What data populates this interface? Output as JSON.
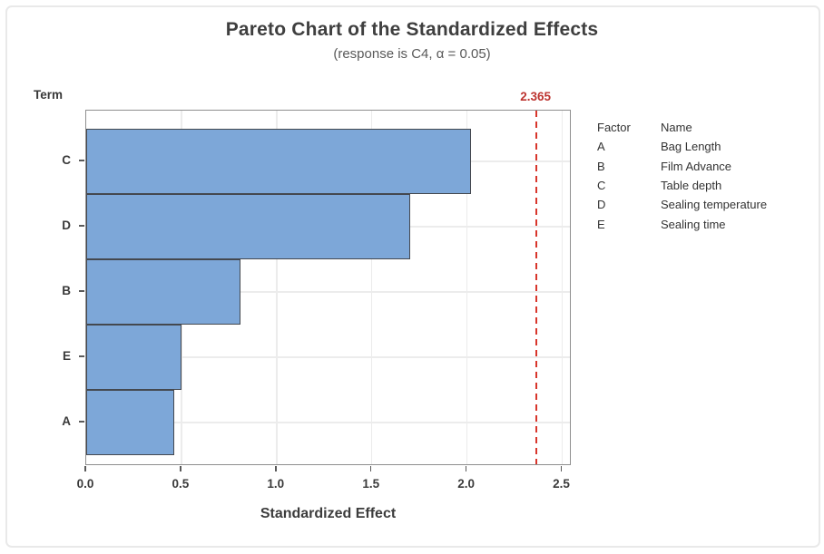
{
  "figure": {
    "title": "Pareto Chart of the Standardized Effects",
    "subtitle": "(response is C4, α = 0.05)",
    "y_axis_label": "Term",
    "x_axis_label": "Standardized Effect"
  },
  "chart_data": {
    "type": "bar",
    "orientation": "horizontal",
    "title": "Pareto Chart of the Standardized Effects",
    "subtitle": "(response is C4, α = 0.05)",
    "xlabel": "Standardized Effect",
    "ylabel": "Term",
    "categories": [
      "C",
      "D",
      "B",
      "E",
      "A"
    ],
    "values": [
      2.02,
      1.7,
      0.81,
      0.5,
      0.46
    ],
    "xlim": [
      0,
      2.55
    ],
    "x_ticks": [
      0.0,
      0.5,
      1.0,
      1.5,
      2.0,
      2.5
    ],
    "x_tick_labels": [
      "0.0",
      "0.5",
      "1.0",
      "1.5",
      "2.0",
      "2.5"
    ],
    "grid": true,
    "legend_position": "right-outside",
    "reference_line": {
      "value": 2.365,
      "label": "2.365",
      "style": "dashed",
      "color": "#d8352b"
    },
    "colors": {
      "bar_fill": "#7da7d8",
      "bar_border": "#44484f",
      "gridline": "#ececec",
      "plot_frame": "#8f8f8f",
      "reference_red": "#bd3430",
      "text": "#3c3c3c"
    }
  },
  "legend": {
    "headers": [
      "Factor",
      "Name"
    ],
    "rows": [
      {
        "factor": "A",
        "name": "Bag Length"
      },
      {
        "factor": "B",
        "name": "Film Advance"
      },
      {
        "factor": "C",
        "name": "Table depth"
      },
      {
        "factor": "D",
        "name": "Sealing temperature"
      },
      {
        "factor": "E",
        "name": "Sealing time"
      }
    ]
  }
}
